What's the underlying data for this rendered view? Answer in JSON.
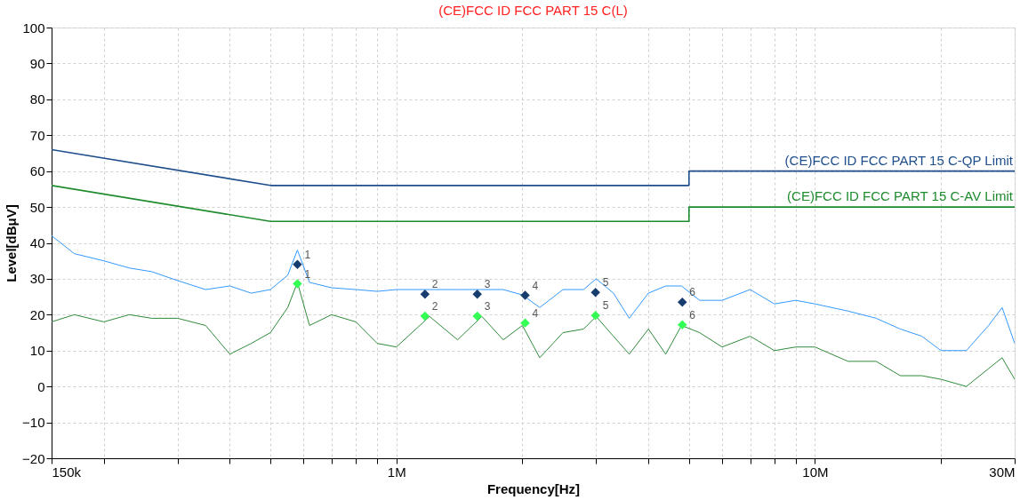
{
  "chart_data": {
    "type": "line",
    "title": "(CE)FCC ID FCC PART 15  C(L)",
    "xlabel": "Frequency[Hz]",
    "ylabel": "Level[dBμV]",
    "log": "x",
    "grid": true,
    "legend": false,
    "line_style": "solid",
    "marker": "none",
    "xlim": [
      150000,
      30000000
    ],
    "xticks": [
      {
        "value": 150000,
        "label": "150k"
      },
      {
        "value": 200000,
        "label": null
      },
      {
        "value": 300000,
        "label": null
      },
      {
        "value": 400000,
        "label": null
      },
      {
        "value": 500000,
        "label": null
      },
      {
        "value": 600000,
        "label": null
      },
      {
        "value": 700000,
        "label": null
      },
      {
        "value": 800000,
        "label": null
      },
      {
        "value": 900000,
        "label": null
      },
      {
        "value": 1000000,
        "label": "1M"
      },
      {
        "value": 2000000,
        "label": null
      },
      {
        "value": 3000000,
        "label": null
      },
      {
        "value": 4000000,
        "label": null
      },
      {
        "value": 5000000,
        "label": null
      },
      {
        "value": 6000000,
        "label": null
      },
      {
        "value": 7000000,
        "label": null
      },
      {
        "value": 8000000,
        "label": null
      },
      {
        "value": 9000000,
        "label": null
      },
      {
        "value": 10000000,
        "label": "10M"
      },
      {
        "value": 20000000,
        "label": null
      },
      {
        "value": 30000000,
        "label": "30M"
      }
    ],
    "ylim": [
      -20,
      100
    ],
    "yticks": [
      -20,
      -10,
      0,
      10,
      20,
      30,
      40,
      50,
      60,
      70,
      80,
      90,
      100
    ],
    "series": [
      {
        "name": "(CE)FCC ID FCC PART 15  C-QP Limit",
        "color": "#1f4e8c",
        "x": [
          150000,
          500000,
          5000000,
          5000000,
          30000000
        ],
        "values": [
          66,
          56,
          56,
          60,
          60
        ]
      },
      {
        "name": "(CE)FCC ID FCC PART 15  C-AV Limit",
        "color": "#1e8c2e",
        "x": [
          150000,
          500000,
          5000000,
          5000000,
          30000000
        ],
        "values": [
          56,
          46,
          46,
          50,
          50
        ]
      },
      {
        "color": "#3399ff",
        "x": [
          150000,
          170000,
          200000,
          230000,
          260000,
          300000,
          350000,
          400000,
          450000,
          500000,
          550000,
          580000,
          620000,
          700000,
          800000,
          900000,
          1000000,
          1200000,
          1400000,
          1600000,
          1800000,
          2000000,
          2200000,
          2500000,
          2800000,
          3000000,
          3300000,
          3600000,
          4000000,
          4400000,
          4800000,
          5300000,
          6000000,
          7000000,
          8000000,
          9000000,
          10000000,
          12000000,
          14000000,
          16000000,
          18000000,
          20000000,
          23000000,
          26000000,
          28000000,
          30000000
        ],
        "values": [
          42,
          37,
          35,
          33,
          32,
          29.5,
          27,
          28,
          26,
          27,
          31,
          38,
          29,
          27.5,
          27,
          26.5,
          27,
          27,
          27,
          27,
          27,
          25.5,
          22,
          27,
          27,
          30,
          26,
          19,
          26,
          28,
          28,
          24,
          24,
          27,
          23,
          24,
          23,
          21,
          19,
          16,
          14,
          10,
          10,
          17,
          22,
          12
        ]
      },
      {
        "color": "#2e8b3a",
        "x": [
          150000,
          170000,
          200000,
          230000,
          260000,
          300000,
          350000,
          400000,
          450000,
          500000,
          550000,
          580000,
          620000,
          700000,
          800000,
          900000,
          1000000,
          1200000,
          1400000,
          1600000,
          1800000,
          2000000,
          2200000,
          2500000,
          2800000,
          3000000,
          3300000,
          3600000,
          4000000,
          4400000,
          4800000,
          5300000,
          6000000,
          7000000,
          8000000,
          9000000,
          10000000,
          12000000,
          14000000,
          16000000,
          18000000,
          20000000,
          23000000,
          26000000,
          28000000,
          30000000
        ],
        "values": [
          18,
          20,
          18,
          20,
          19,
          19,
          17,
          9,
          12,
          15,
          22,
          29,
          17,
          20,
          18,
          12,
          11,
          19.5,
          13,
          19.5,
          13,
          17,
          8,
          15,
          16,
          19.5,
          14,
          9,
          16,
          9,
          17,
          15,
          11,
          14,
          10,
          11,
          11,
          7,
          7,
          3,
          3,
          2,
          0,
          5,
          8,
          2
        ]
      },
      {
        "type": "scatter",
        "marker": "diamond",
        "color": "#173d6e",
        "x": [
          580000,
          1170000,
          1560000,
          2030000,
          2990000,
          4820000
        ],
        "values": [
          34,
          25.7,
          25.7,
          25.4,
          26.2,
          23.5
        ]
      },
      {
        "type": "scatter",
        "marker": "diamond",
        "color": "#33ff55",
        "x": [
          580000,
          1170000,
          1560000,
          2030000,
          2990000,
          4820000
        ],
        "values": [
          28.6,
          19.6,
          19.6,
          17.7,
          19.8,
          17.2
        ]
      }
    ],
    "annotations": [
      {
        "text": "1",
        "x": 580000,
        "y": 34
      },
      {
        "text": "2",
        "x": 1170000,
        "y": 25.7
      },
      {
        "text": "3",
        "x": 1560000,
        "y": 25.7
      },
      {
        "text": "4",
        "x": 2030000,
        "y": 25.4
      },
      {
        "text": "5",
        "x": 2990000,
        "y": 26.2
      },
      {
        "text": "6",
        "x": 4820000,
        "y": 23.5
      },
      {
        "text": "1",
        "x": 580000,
        "y": 28.6
      },
      {
        "text": "2",
        "x": 1170000,
        "y": 19.6
      },
      {
        "text": "3",
        "x": 1560000,
        "y": 19.6
      },
      {
        "text": "4",
        "x": 2030000,
        "y": 17.7
      },
      {
        "text": "5",
        "x": 2990000,
        "y": 19.8
      },
      {
        "text": "6",
        "x": 4820000,
        "y": 17.2
      }
    ]
  }
}
